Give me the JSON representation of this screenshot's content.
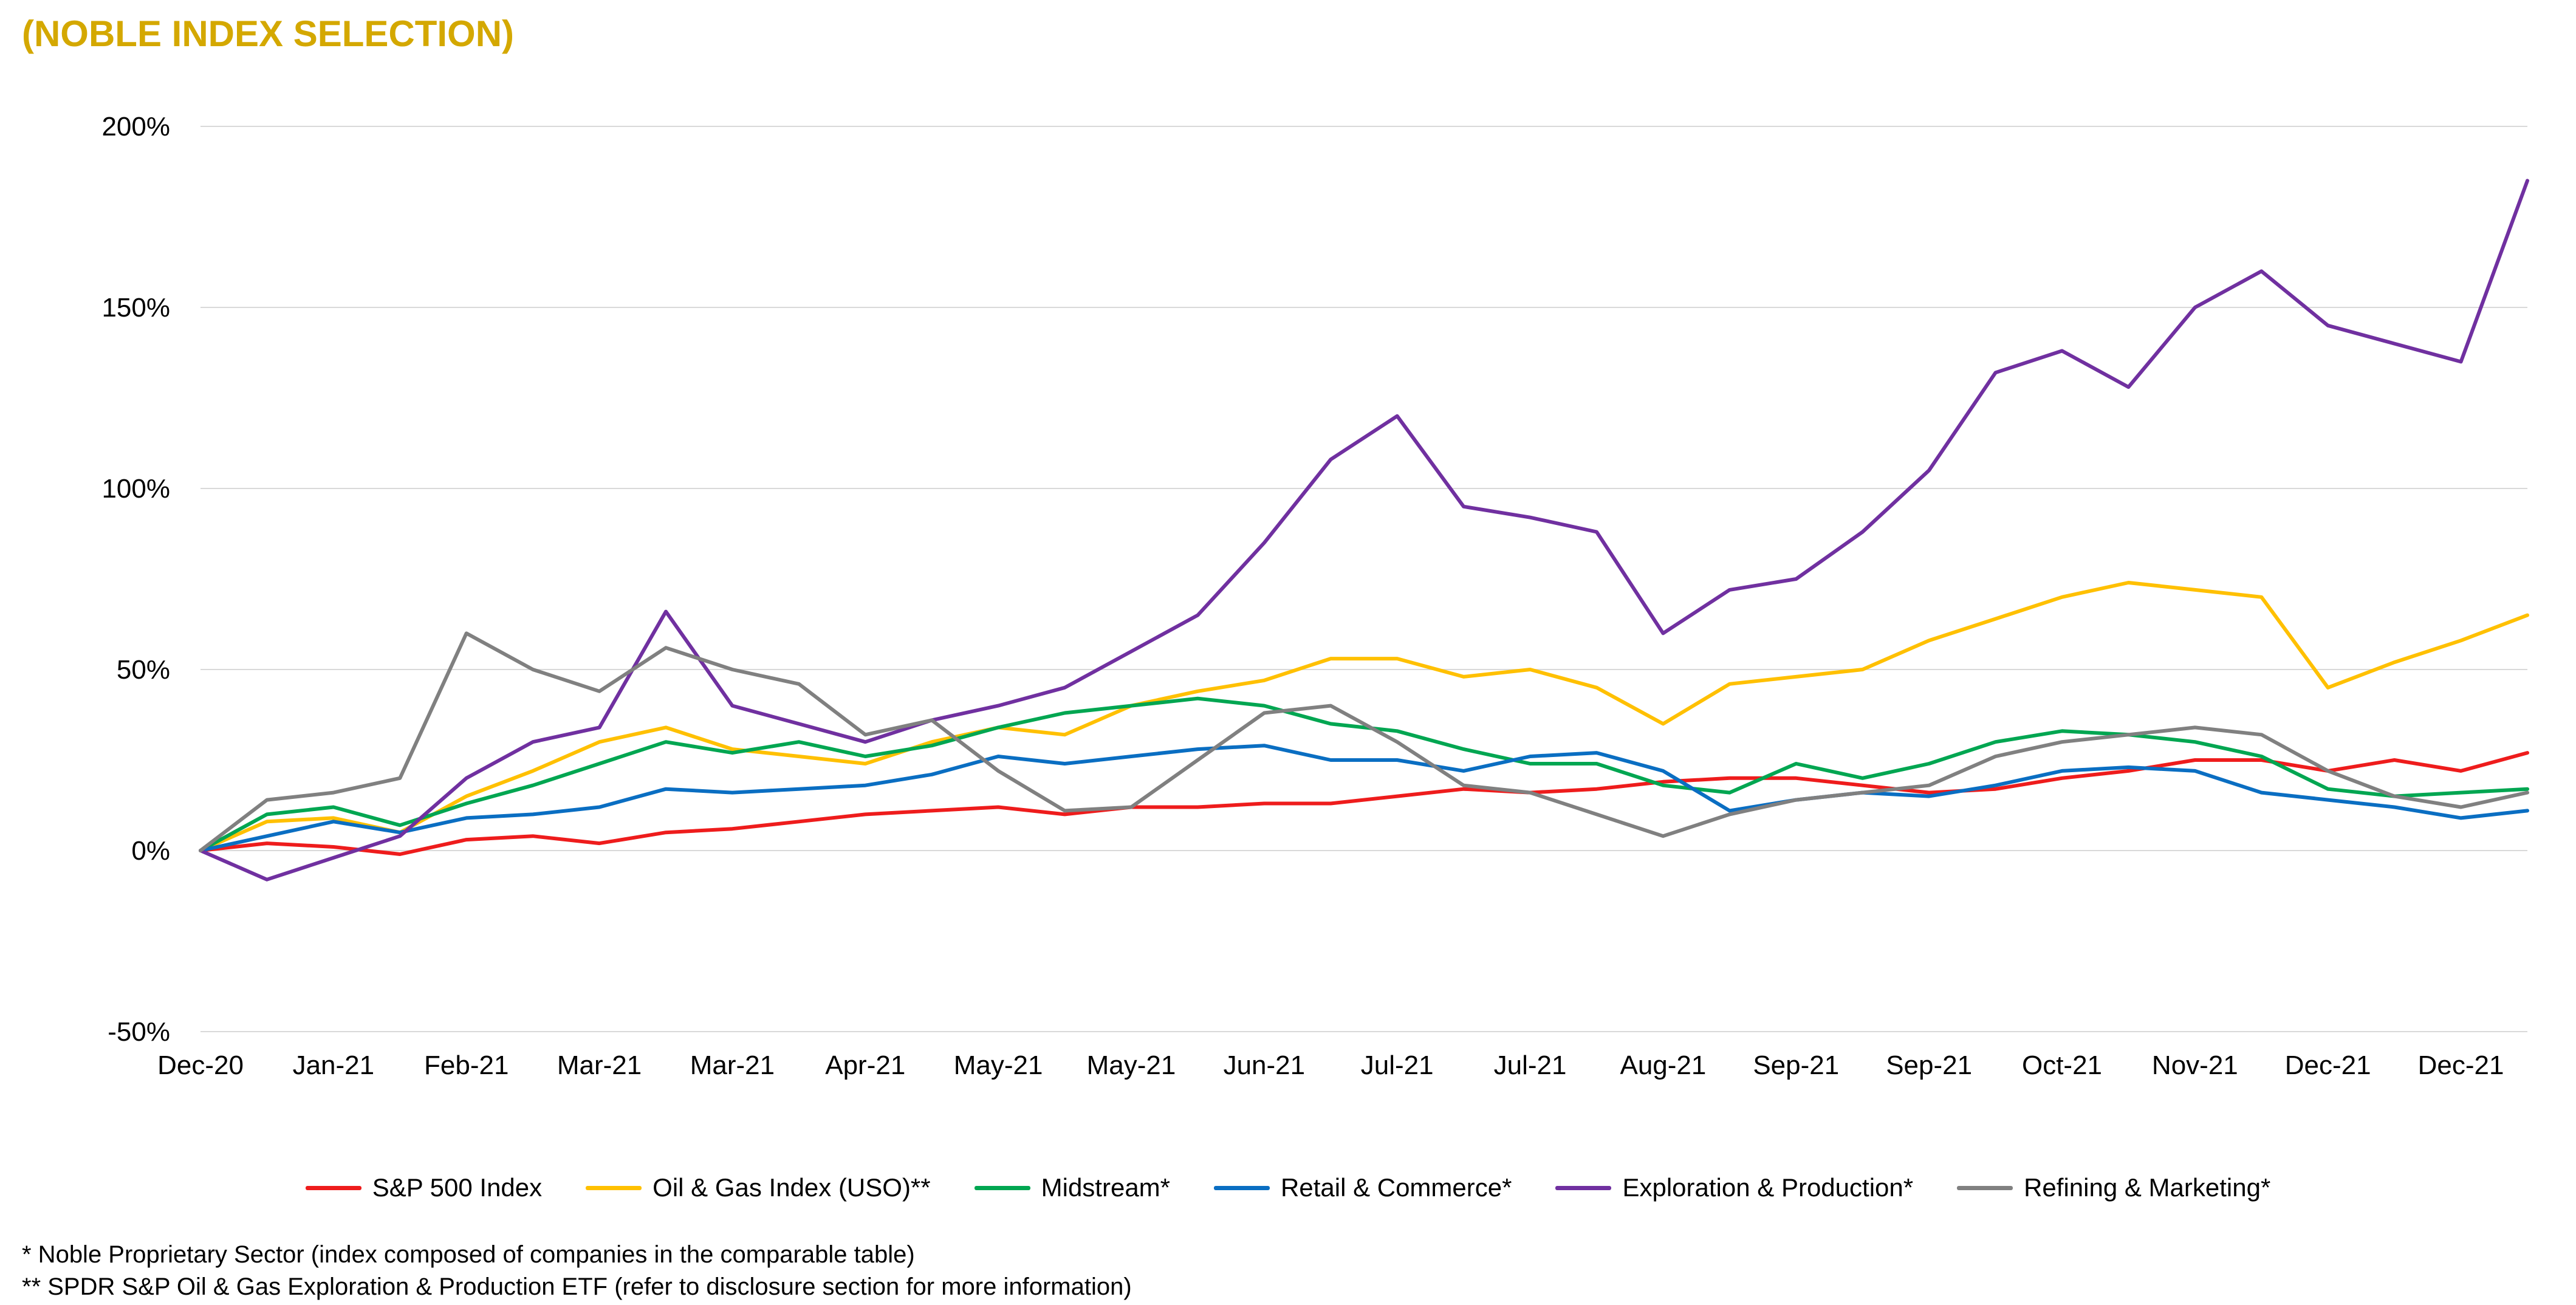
{
  "page": {
    "title": "(NOBLE INDEX SELECTION)",
    "title_color": "#D4A800",
    "footnotes": [
      "* Noble Proprietary Sector (index composed of companies in the comparable table)",
      "** SPDR S&P Oil & Gas Exploration & Production ETF (refer to disclosure section for more information)"
    ]
  },
  "chart_data": {
    "type": "line",
    "title": "(NOBLE INDEX SELECTION)",
    "xlabel": "",
    "ylabel": "",
    "ylim": [
      -50,
      200
    ],
    "yticks": [
      -50,
      0,
      50,
      100,
      150,
      200
    ],
    "ytick_labels": [
      "-50%",
      "0%",
      "50%",
      "100%",
      "150%",
      "200%"
    ],
    "x_tick_labels": [
      "Dec-20",
      "Jan-21",
      "Feb-21",
      "Mar-21",
      "Mar-21",
      "Apr-21",
      "May-21",
      "May-21",
      "Jun-21",
      "Jul-21",
      "Jul-21",
      "Aug-21",
      "Sep-21",
      "Sep-21",
      "Oct-21",
      "Nov-21",
      "Dec-21",
      "Dec-21"
    ],
    "x_tick_positions": [
      0,
      14,
      28,
      42,
      56,
      70,
      84,
      98,
      112,
      126,
      140,
      154,
      168,
      182,
      196,
      210,
      224,
      238
    ],
    "x_range": [
      0,
      245
    ],
    "x": [
      0,
      7,
      14,
      21,
      28,
      35,
      42,
      49,
      56,
      63,
      70,
      77,
      84,
      91,
      98,
      105,
      112,
      119,
      126,
      133,
      140,
      147,
      154,
      161,
      168,
      175,
      182,
      189,
      196,
      203,
      210,
      217,
      224,
      231,
      238,
      245
    ],
    "grid": "horizontal",
    "legend_position": "bottom",
    "series": [
      {
        "name": "S&P 500 Index",
        "color": "#EE1C1C",
        "values": [
          0,
          2,
          1,
          -1,
          3,
          4,
          2,
          5,
          6,
          8,
          10,
          11,
          12,
          10,
          12,
          12,
          13,
          13,
          15,
          17,
          16,
          17,
          19,
          20,
          20,
          18,
          16,
          17,
          20,
          22,
          25,
          25,
          22,
          25,
          22,
          27
        ]
      },
      {
        "name": "Oil & Gas Index (USO)**",
        "color": "#FFC000",
        "values": [
          0,
          8,
          9,
          5,
          15,
          22,
          30,
          34,
          28,
          26,
          24,
          30,
          34,
          32,
          40,
          44,
          47,
          53,
          53,
          48,
          50,
          45,
          35,
          46,
          48,
          50,
          58,
          64,
          70,
          74,
          72,
          70,
          45,
          52,
          58,
          65
        ]
      },
      {
        "name": "Midstream*",
        "color": "#00A651",
        "values": [
          0,
          10,
          12,
          7,
          13,
          18,
          24,
          30,
          27,
          30,
          26,
          29,
          34,
          38,
          40,
          42,
          40,
          35,
          33,
          28,
          24,
          24,
          18,
          16,
          24,
          20,
          24,
          30,
          33,
          32,
          30,
          26,
          17,
          15,
          16,
          17
        ]
      },
      {
        "name": "Retail & Commerce*",
        "color": "#0A6EC2",
        "values": [
          0,
          4,
          8,
          5,
          9,
          10,
          12,
          17,
          16,
          17,
          18,
          21,
          26,
          24,
          26,
          28,
          29,
          25,
          25,
          22,
          26,
          27,
          22,
          11,
          14,
          16,
          15,
          18,
          22,
          23,
          22,
          16,
          14,
          12,
          9,
          11
        ]
      },
      {
        "name": "Exploration & Production*",
        "color": "#7030A0",
        "values": [
          0,
          -8,
          -2,
          4,
          20,
          30,
          34,
          66,
          40,
          35,
          30,
          36,
          40,
          45,
          55,
          65,
          85,
          108,
          120,
          95,
          92,
          88,
          60,
          72,
          75,
          88,
          105,
          132,
          138,
          128,
          150,
          160,
          145,
          140,
          135,
          185
        ]
      },
      {
        "name": "Refining & Marketing*",
        "color": "#808080",
        "values": [
          0,
          14,
          16,
          20,
          60,
          50,
          44,
          56,
          50,
          46,
          32,
          36,
          22,
          11,
          12,
          25,
          38,
          40,
          30,
          18,
          16,
          10,
          4,
          10,
          14,
          16,
          18,
          26,
          30,
          32,
          34,
          32,
          22,
          15,
          12,
          16
        ]
      }
    ]
  }
}
